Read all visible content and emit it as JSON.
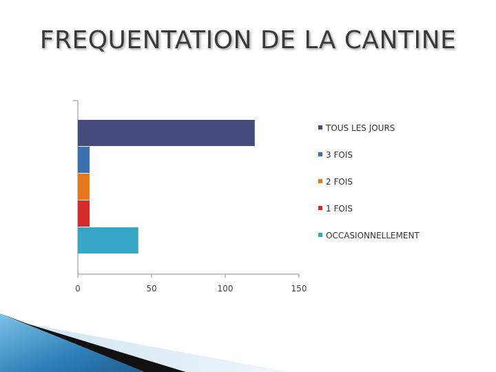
{
  "slide": {
    "title": "FREQUENTATION DE LA CANTINE"
  },
  "chart_data": {
    "type": "bar",
    "orientation": "horizontal",
    "categories": [
      "TOUS LES JOURS",
      "3 FOIS",
      "2 FOIS",
      "1 FOIS",
      "OCCASIONNELLEMENT"
    ],
    "values": [
      120,
      8,
      8,
      8,
      41
    ],
    "colors": [
      "#454c7c",
      "#3a6fb0",
      "#e6781c",
      "#d42b2b",
      "#35a6c4"
    ],
    "xlim": [
      0,
      150
    ],
    "xticks": [
      0,
      50,
      100,
      150
    ],
    "title": "",
    "xlabel": "",
    "ylabel": "",
    "grid": false,
    "legend_position": "right"
  }
}
